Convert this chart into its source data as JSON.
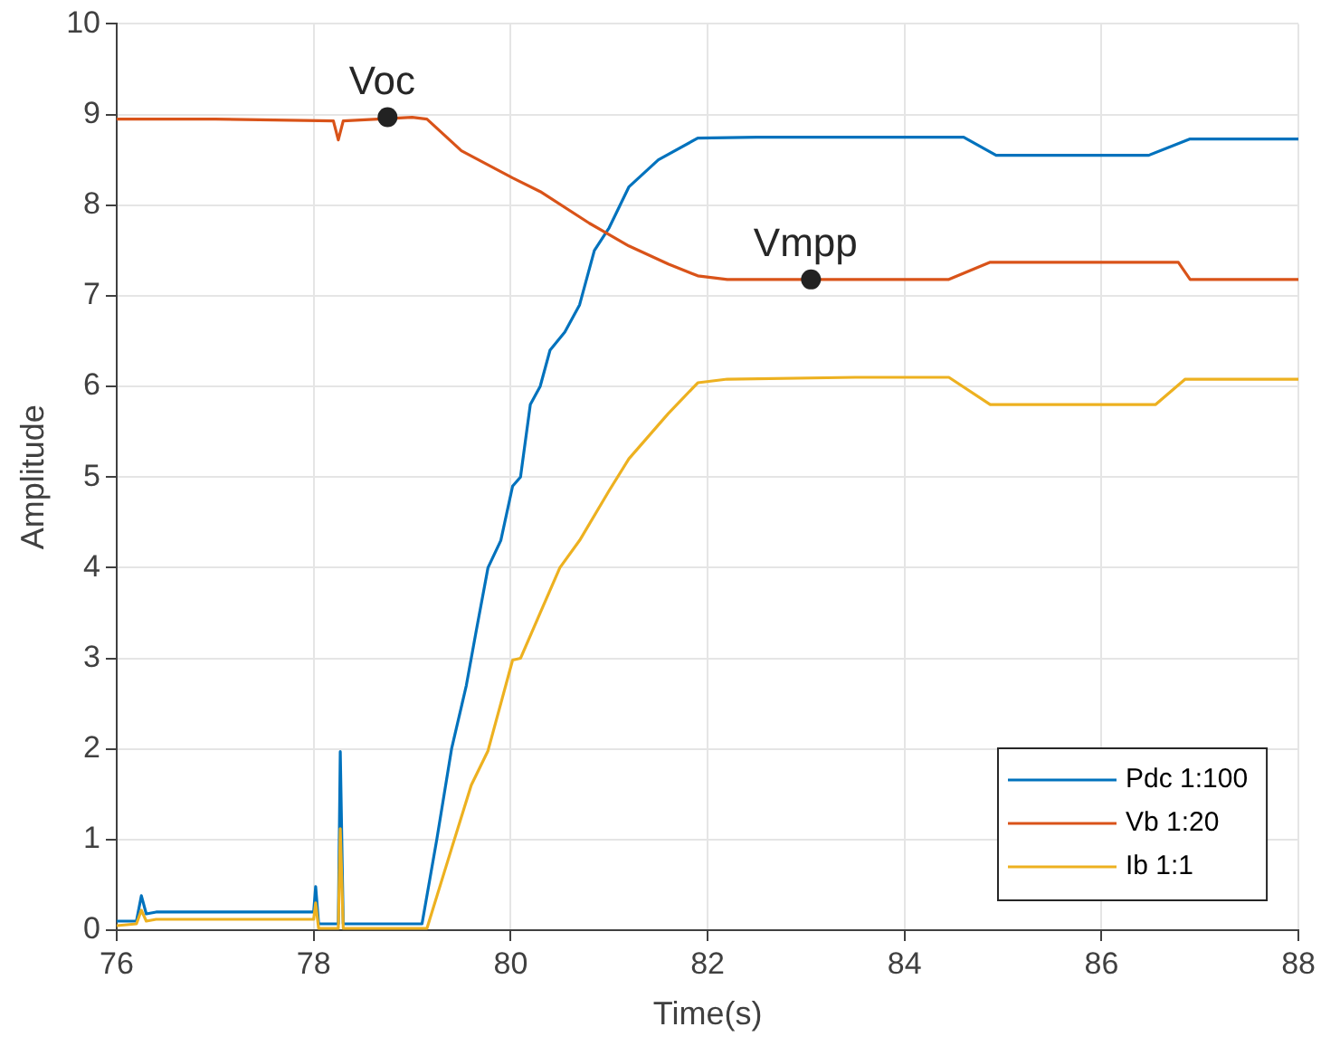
{
  "chart_data": {
    "type": "line",
    "xlabel": "Time(s)",
    "ylabel": "Amplitude",
    "xlim": [
      76,
      88
    ],
    "xticks": [
      76,
      78,
      80,
      82,
      84,
      86,
      88
    ],
    "ylim": [
      0,
      10
    ],
    "yticks": [
      0,
      1,
      2,
      3,
      4,
      5,
      6,
      7,
      8,
      9,
      10
    ],
    "grid": true,
    "legend": "bottom right",
    "marker": "none",
    "line_style": "solid",
    "annotations": [
      {
        "text": "Voc",
        "x": 78.75,
        "y": 8.97
      },
      {
        "text": "Vmpp",
        "x": 83.05,
        "y": 7.18
      }
    ],
    "series": [
      {
        "name": "Pdc 1:100",
        "color": "#0072bd",
        "x": [
          76,
          76.2,
          76.25,
          76.3,
          76.4,
          77,
          78,
          78.02,
          78.05,
          78.25,
          78.27,
          78.3,
          79.1,
          79.25,
          79.4,
          79.55,
          79.65,
          79.77,
          79.9,
          80.02,
          80.1,
          80.2,
          80.3,
          80.4,
          80.55,
          80.7,
          80.85,
          81,
          81.2,
          81.5,
          81.9,
          82.5,
          83.5,
          84.6,
          84.93,
          85.5,
          86.48,
          86.9,
          87.5,
          88
        ],
        "values": [
          0.1,
          0.1,
          0.38,
          0.18,
          0.2,
          0.2,
          0.2,
          0.48,
          0.07,
          0.07,
          1.97,
          0.07,
          0.07,
          1.0,
          2.0,
          2.7,
          3.3,
          4.0,
          4.3,
          4.9,
          5.0,
          5.8,
          6.0,
          6.4,
          6.6,
          6.9,
          7.5,
          7.75,
          8.2,
          8.5,
          8.74,
          8.75,
          8.75,
          8.75,
          8.55,
          8.55,
          8.55,
          8.73,
          8.73,
          8.73
        ]
      },
      {
        "name": "Vb 1:20",
        "color": "#d95319",
        "x": [
          76,
          77,
          78.2,
          78.25,
          78.3,
          79,
          79.15,
          79.5,
          80.02,
          80.3,
          80.8,
          81.2,
          81.6,
          81.9,
          82.2,
          83.5,
          84.45,
          84.87,
          85.5,
          86.78,
          86.9,
          88
        ],
        "values": [
          8.95,
          8.95,
          8.93,
          8.72,
          8.93,
          8.97,
          8.95,
          8.6,
          8.3,
          8.15,
          7.8,
          7.55,
          7.35,
          7.22,
          7.18,
          7.18,
          7.18,
          7.37,
          7.37,
          7.37,
          7.18,
          7.18
        ]
      },
      {
        "name": "Ib 1:1",
        "color": "#edb120",
        "x": [
          76,
          76.2,
          76.25,
          76.3,
          76.4,
          78,
          78.02,
          78.05,
          78.25,
          78.27,
          78.3,
          79.15,
          79.4,
          79.6,
          79.77,
          79.9,
          80.02,
          80.1,
          80.3,
          80.5,
          80.7,
          81,
          81.2,
          81.4,
          81.6,
          81.9,
          82.2,
          83.5,
          84.45,
          84.87,
          85.5,
          86.55,
          86.85,
          88
        ],
        "values": [
          0.05,
          0.07,
          0.22,
          0.1,
          0.12,
          0.12,
          0.3,
          0.02,
          0.02,
          1.12,
          0.02,
          0.02,
          0.9,
          1.6,
          1.98,
          2.5,
          2.98,
          3.0,
          3.5,
          4.0,
          4.3,
          4.85,
          5.2,
          5.45,
          5.7,
          6.04,
          6.08,
          6.1,
          6.1,
          5.8,
          5.8,
          5.8,
          6.08,
          6.08
        ]
      }
    ]
  }
}
